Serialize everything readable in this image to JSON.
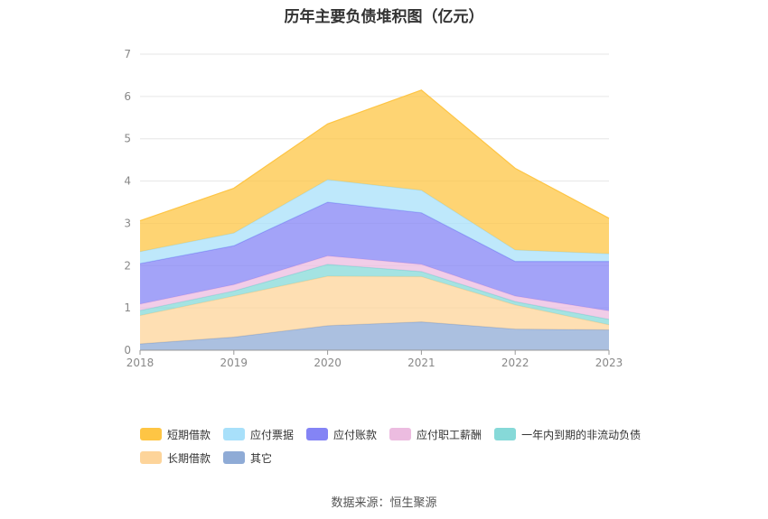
{
  "chart_data": {
    "type": "area",
    "stacked": true,
    "title": "历年主要负债堆积图（亿元）",
    "categories": [
      "2018",
      "2019",
      "2020",
      "2021",
      "2022",
      "2023"
    ],
    "ylim": [
      0,
      7
    ],
    "yticks": [
      "0",
      "1",
      "2",
      "3",
      "4",
      "5",
      "6",
      "7"
    ],
    "grid": true,
    "legend_position": "bottom",
    "series": [
      {
        "name": "其它",
        "color": "#8fabd6",
        "values": [
          0.15,
          0.31,
          0.58,
          0.67,
          0.5,
          0.48
        ]
      },
      {
        "name": "长期借款",
        "color": "#fdd49a",
        "values": [
          0.67,
          0.97,
          1.17,
          1.07,
          0.57,
          0.12
        ]
      },
      {
        "name": "一年内到期的非流动负债",
        "color": "#86d9d8",
        "values": [
          0.12,
          0.12,
          0.28,
          0.12,
          0.08,
          0.13
        ]
      },
      {
        "name": "应付职工薪酬",
        "color": "#ecbce0",
        "values": [
          0.15,
          0.15,
          0.2,
          0.17,
          0.13,
          0.2
        ]
      },
      {
        "name": "应付账款",
        "color": "#8484f5",
        "values": [
          0.96,
          0.92,
          1.27,
          1.22,
          0.82,
          1.17
        ]
      },
      {
        "name": "应付票据",
        "color": "#a8e0fa",
        "values": [
          0.28,
          0.3,
          0.53,
          0.53,
          0.27,
          0.18
        ]
      },
      {
        "name": "短期借款",
        "color": "#fec544",
        "values": [
          0.73,
          1.06,
          1.32,
          2.37,
          1.93,
          0.84
        ]
      }
    ],
    "legend_order": [
      "短期借款",
      "应付票据",
      "应付账款",
      "应付职工薪酬",
      "一年内到期的非流动负债",
      "长期借款",
      "其它"
    ]
  },
  "source_note": "数据来源：恒生聚源"
}
